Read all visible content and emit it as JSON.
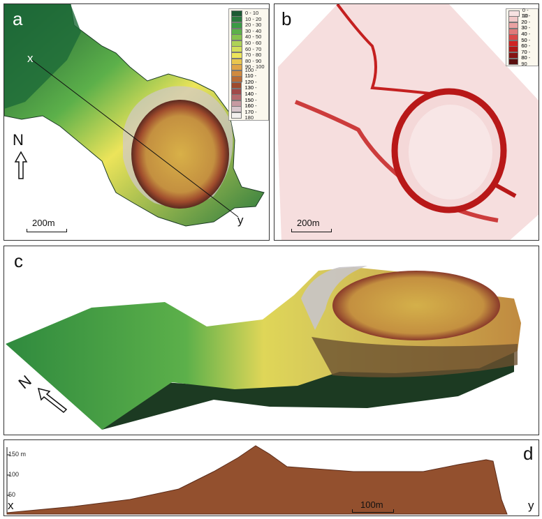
{
  "panels": {
    "a": {
      "letter": "a",
      "profile_start": "x",
      "profile_end": "y",
      "north": "N",
      "scale": "200m"
    },
    "b": {
      "letter": "b",
      "scale": "200m"
    },
    "c": {
      "letter": "c",
      "north": "N"
    },
    "d": {
      "letter": "d",
      "profile_start": "x",
      "profile_end": "y",
      "scale": "100m",
      "axis_ticks": [
        "150 m",
        "100",
        "50"
      ]
    }
  },
  "legend_a": [
    {
      "label": "0 - 10",
      "color": "#1d5a34"
    },
    {
      "label": "10 - 20",
      "color": "#2a7a3e"
    },
    {
      "label": "20 - 30",
      "color": "#3a9a44"
    },
    {
      "label": "30 - 40",
      "color": "#5cb04a"
    },
    {
      "label": "40 - 50",
      "color": "#86c24e"
    },
    {
      "label": "50 - 60",
      "color": "#aed256"
    },
    {
      "label": "60 - 70",
      "color": "#d3df5a"
    },
    {
      "label": "70 - 80",
      "color": "#ece45a"
    },
    {
      "label": "80 - 90",
      "color": "#e9c64e"
    },
    {
      "label": "90 - 100",
      "color": "#dfa447"
    },
    {
      "label": "100 - 110",
      "color": "#d08a3e"
    },
    {
      "label": "110 - 120",
      "color": "#b86a34"
    },
    {
      "label": "120 - 130",
      "color": "#9e4a2c"
    },
    {
      "label": "130 - 140",
      "color": "#a04a4a"
    },
    {
      "label": "140 - 150",
      "color": "#b46a6e"
    },
    {
      "label": "150 - 160",
      "color": "#c79aa2"
    },
    {
      "label": "160 - 170",
      "color": "#d8c6cc"
    },
    {
      "label": "170 - 180",
      "color": "#f3f0ee"
    }
  ],
  "legend_b": [
    {
      "label": "0 - 10",
      "color": "#f7e2e2"
    },
    {
      "label": "10 - 20",
      "color": "#f1c8c8"
    },
    {
      "label": "20 - 30",
      "color": "#e9a2a2"
    },
    {
      "label": "30 - 40",
      "color": "#e07a7a"
    },
    {
      "label": "40 - 50",
      "color": "#d94848"
    },
    {
      "label": "50 - 60",
      "color": "#cf2424"
    },
    {
      "label": "60 - 70",
      "color": "#b01818"
    },
    {
      "label": "70 - 80",
      "color": "#861414"
    },
    {
      "label": "80 - 90",
      "color": "#5a1010"
    }
  ]
}
